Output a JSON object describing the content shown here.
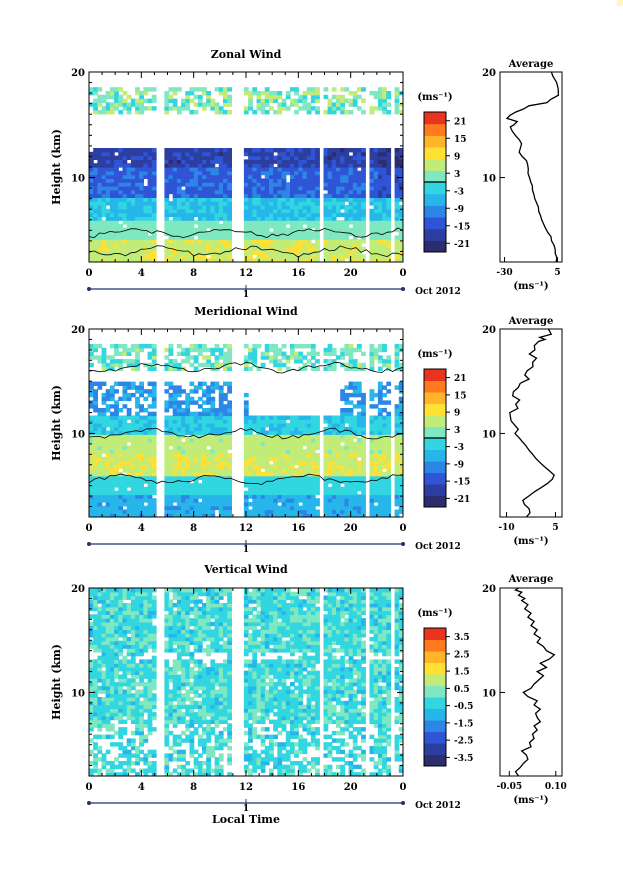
{
  "figure": {
    "xlabel": "Local Time",
    "date_label": "Oct 2012",
    "day_label": "1",
    "ylabel": "Height (km)",
    "unit_label": "(ms⁻¹)",
    "x_ticks": [
      "0",
      "4",
      "8",
      "12",
      "16",
      "20",
      "0"
    ],
    "y_ticks": [
      "20",
      "10"
    ],
    "avg_title": "Average",
    "colorscale": [
      "#2b2d6e",
      "#2c3ea0",
      "#2f55d6",
      "#2d86e6",
      "#27b6ea",
      "#31d6e0",
      "#7fe8c0",
      "#c2ec78",
      "#ffe033",
      "#ffb429",
      "#ff7a1e",
      "#e8331e"
    ]
  },
  "chart_data": [
    {
      "type": "heatmap",
      "title": "Zonal Wind",
      "xlim": [
        0,
        24
      ],
      "ylim": [
        2,
        20
      ],
      "colorbar_ticks": [
        "21",
        "15",
        "9",
        "3",
        "-3",
        "-9",
        "-15",
        "-21"
      ],
      "colorbar_range": [
        -24,
        24
      ],
      "profile": {
        "title": "Average",
        "xlabel": "(ms⁻¹)",
        "x_ticks": [
          "-30",
          "5"
        ],
        "xlim": [
          -33,
          8
        ],
        "ylim": [
          2,
          20
        ],
        "x": [
          4.1,
          4.6,
          3.6,
          3.5,
          2.7,
          1.1,
          0.7,
          -1.4,
          -2.9,
          -4.2,
          -5.4,
          -6.2,
          -7.4,
          -7.6,
          -8.8,
          -10.0,
          -10.6,
          -11.5,
          -11.6,
          -12.7,
          -13.5,
          -14.5,
          -14.3,
          -14.7,
          -15.5,
          -18.4,
          -20.3,
          -19.5,
          -18.7,
          -20.3,
          -22.9,
          -24.9,
          -26.2,
          -23.8,
          -21.6,
          -28.4,
          -26.4,
          -22.7,
          -17.3,
          -13.9,
          -1.9,
          0.5,
          5.6,
          5.5,
          4.5,
          2.0,
          1.0
        ],
        "y": [
          2.0,
          2.4,
          2.8,
          3.2,
          3.6,
          4.0,
          4.4,
          4.8,
          5.2,
          5.6,
          6.0,
          6.4,
          6.8,
          7.2,
          7.6,
          8.0,
          8.4,
          8.8,
          9.2,
          9.6,
          10.0,
          10.4,
          10.8,
          11.2,
          11.6,
          12.0,
          12.4,
          12.8,
          13.2,
          13.6,
          14.0,
          14.4,
          14.8,
          15.0,
          15.3,
          15.6,
          15.9,
          16.2,
          16.5,
          16.8,
          17.1,
          17.4,
          17.8,
          18.4,
          19.0,
          19.6,
          20.0
        ]
      }
    },
    {
      "type": "heatmap",
      "title": "Meridional Wind",
      "xlim": [
        0,
        24
      ],
      "ylim": [
        2,
        20
      ],
      "colorbar_ticks": [
        "21",
        "15",
        "9",
        "3",
        "-3",
        "-9",
        "-15",
        "-21"
      ],
      "colorbar_range": [
        -24,
        24
      ],
      "profile": {
        "title": "Average",
        "xlabel": "(ms⁻¹)",
        "x_ticks": [
          "-10",
          "5"
        ],
        "xlim": [
          -12,
          7
        ],
        "ylim": [
          2,
          20
        ],
        "x": [
          -3.9,
          -2.8,
          -3.1,
          -4.5,
          -5.0,
          -3.2,
          -1.5,
          0.5,
          2.5,
          4.0,
          4.6,
          3.2,
          1.7,
          0.3,
          -1.0,
          -2.0,
          -3.1,
          -4.0,
          -5.1,
          -6.2,
          -7.4,
          -6.4,
          -7.5,
          -8.6,
          -8.8,
          -9.0,
          -6.5,
          -7.2,
          -6.0,
          -8.1,
          -7.9,
          -6.4,
          -5.8,
          -3.1,
          -4.4,
          -3.7,
          -1.9,
          -2.0,
          -0.8,
          -3.0,
          -1.3,
          -1.5,
          -0.2,
          1.8,
          0.2,
          3.7,
          3.2,
          2.8
        ],
        "y": [
          2.0,
          2.4,
          2.8,
          3.2,
          3.6,
          4.0,
          4.4,
          4.8,
          5.2,
          5.6,
          6.0,
          6.4,
          6.8,
          7.2,
          7.6,
          8.0,
          8.4,
          8.8,
          9.2,
          9.6,
          10.0,
          10.4,
          10.8,
          11.2,
          11.6,
          12.0,
          12.4,
          12.8,
          13.2,
          13.6,
          14.0,
          14.4,
          14.8,
          15.2,
          15.6,
          16.0,
          16.4,
          16.8,
          17.2,
          17.6,
          18.0,
          18.4,
          18.8,
          19.0,
          19.2,
          19.5,
          19.8,
          20.0
        ]
      }
    },
    {
      "type": "heatmap",
      "title": "Vertical Wind",
      "xlabel": "Local Time",
      "xlim": [
        0,
        24
      ],
      "ylim": [
        2,
        20
      ],
      "colorbar_ticks": [
        "3.5",
        "2.5",
        "1.5",
        "0.5",
        "-0.5",
        "-1.5",
        "-2.5",
        "-3.5"
      ],
      "colorbar_range": [
        -4,
        4
      ],
      "profile": {
        "title": "Average",
        "xlabel": "(ms⁻¹)",
        "x_ticks": [
          "-0.05",
          "0.10"
        ],
        "xlim": [
          -0.08,
          0.12
        ],
        "ylim": [
          2,
          20
        ],
        "x": [
          -0.02,
          -0.03,
          -0.015,
          -0.005,
          0.01,
          0.005,
          -0.01,
          0.02,
          0.015,
          0.03,
          0.025,
          0.04,
          0.03,
          0.05,
          0.04,
          0.035,
          0.05,
          0.03,
          0.04,
          0.01,
          -0.005,
          0.02,
          0.03,
          0.045,
          0.06,
          0.04,
          0.07,
          0.05,
          0.08,
          0.095,
          0.07,
          0.06,
          0.04,
          0.05,
          0.03,
          0.04,
          0.02,
          0.03,
          0.01,
          0.02,
          0.0,
          0.01,
          -0.01,
          0.0,
          -0.02,
          -0.01,
          -0.03,
          -0.02
        ],
        "y": [
          2.0,
          2.4,
          2.8,
          3.2,
          3.6,
          4.0,
          4.4,
          4.8,
          5.2,
          5.6,
          6.0,
          6.4,
          6.8,
          7.2,
          7.6,
          8.0,
          8.4,
          8.8,
          9.2,
          9.6,
          10.0,
          10.4,
          10.8,
          11.2,
          11.6,
          12.0,
          12.4,
          12.8,
          13.2,
          13.6,
          14.0,
          14.4,
          14.8,
          15.2,
          15.6,
          16.0,
          16.4,
          16.8,
          17.2,
          17.6,
          18.0,
          18.4,
          18.8,
          19.0,
          19.3,
          19.6,
          19.8,
          20.0
        ]
      }
    }
  ]
}
